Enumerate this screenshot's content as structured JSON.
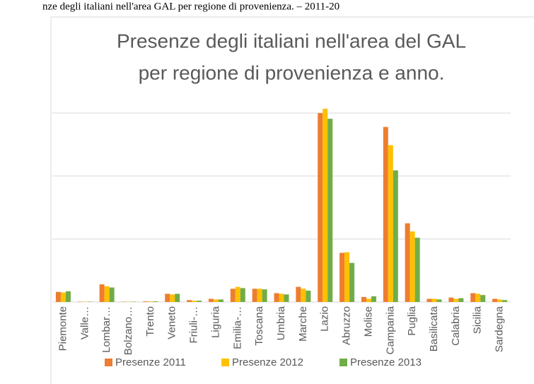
{
  "caption": "nze degli italiani nell'area GAL per regione di provenienza.  – 2011-20",
  "chart_data": {
    "type": "bar",
    "title": [
      "Presenze degli italiani nell'area del GAL",
      "per regione di provenienza e anno."
    ],
    "categories": [
      "Piemonte",
      "Valle…",
      "Lombar…",
      "Bolzano…",
      "Trento",
      "Veneto",
      "Friuli-…",
      "Liguria",
      "Emilia-…",
      "Toscana",
      "Umbria",
      "Marche",
      "Lazio",
      "Abruzzo",
      "Molise",
      "Campania",
      "Puglia",
      "Basilicata",
      "Calabria",
      "Sicilia",
      "Sardegna"
    ],
    "series": [
      {
        "name": "Presenze 2011",
        "color": "#ED7D31",
        "values": [
          0.16,
          0.005,
          0.28,
          0.005,
          0.01,
          0.13,
          0.03,
          0.05,
          0.21,
          0.21,
          0.14,
          0.24,
          3.0,
          0.78,
          0.08,
          2.78,
          1.25,
          0.05,
          0.07,
          0.14,
          0.05
        ]
      },
      {
        "name": "Presenze 2012",
        "color": "#FFC000",
        "values": [
          0.15,
          0.005,
          0.25,
          0.005,
          0.01,
          0.12,
          0.02,
          0.04,
          0.24,
          0.21,
          0.13,
          0.21,
          3.07,
          0.79,
          0.05,
          2.49,
          1.12,
          0.05,
          0.05,
          0.13,
          0.04
        ]
      },
      {
        "name": "Presenze 2013",
        "color": "#70AD47",
        "values": [
          0.17,
          0.005,
          0.23,
          0.005,
          0.01,
          0.13,
          0.02,
          0.04,
          0.22,
          0.2,
          0.12,
          0.18,
          2.91,
          0.62,
          0.09,
          2.09,
          1.02,
          0.04,
          0.06,
          0.11,
          0.03
        ]
      }
    ],
    "ylim": [
      0,
      3.1
    ],
    "yticks": [
      0,
      1,
      2,
      3
    ],
    "grid": true,
    "legend": "bottom"
  }
}
